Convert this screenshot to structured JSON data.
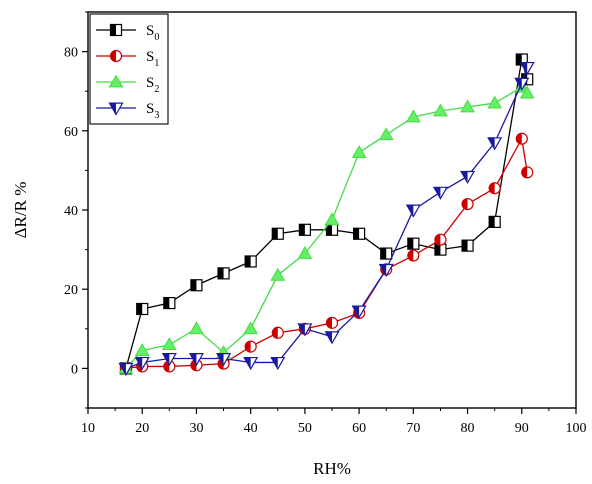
{
  "chart_data": {
    "type": "line",
    "xlabel": "RH%",
    "ylabel": "ΔR/R %",
    "xlim": [
      10,
      100
    ],
    "ylim": [
      -10,
      90
    ],
    "xticks": [
      "10",
      "20",
      "30",
      "40",
      "50",
      "60",
      "70",
      "80",
      "90",
      "100"
    ],
    "yticks": [
      "0",
      "20",
      "40",
      "60",
      "80"
    ],
    "grid": false,
    "legend_position": "top-left",
    "series": [
      {
        "name": "S0",
        "name_base": "S",
        "name_sub": "0",
        "color": "#000000",
        "fill": "#ffffff",
        "marker": "square-half",
        "x": [
          17,
          20,
          25,
          30,
          35,
          40,
          45,
          50,
          55,
          60,
          65,
          70,
          75,
          80,
          85,
          90,
          91
        ],
        "y": [
          0,
          15,
          16.5,
          21,
          24,
          27,
          34,
          35,
          35,
          34,
          29,
          31.5,
          30,
          31,
          37,
          78,
          73
        ]
      },
      {
        "name": "S1",
        "name_base": "S",
        "name_sub": "1",
        "color": "#cc0000",
        "fill": "#ffffff",
        "marker": "circle-half",
        "x": [
          17,
          20,
          25,
          30,
          35,
          40,
          45,
          50,
          55,
          60,
          65,
          70,
          75,
          80,
          85,
          90,
          91
        ],
        "y": [
          0,
          0.5,
          0.5,
          0.8,
          1.2,
          5.5,
          9,
          10,
          11.5,
          14,
          25,
          28.5,
          32.5,
          41.5,
          45.5,
          58,
          49.5
        ]
      },
      {
        "name": "S2",
        "name_base": "S",
        "name_sub": "2",
        "color": "#44dd44",
        "fill": "#66ee66",
        "marker": "triangle-up",
        "x": [
          17,
          20,
          25,
          30,
          35,
          40,
          45,
          50,
          55,
          60,
          65,
          70,
          75,
          80,
          85,
          90,
          91
        ],
        "y": [
          0,
          4.5,
          6,
          10,
          4,
          10,
          23.5,
          29,
          37.5,
          54.5,
          59,
          63.5,
          65,
          66,
          67,
          71,
          69.5
        ]
      },
      {
        "name": "S3",
        "name_base": "S",
        "name_sub": "3",
        "color": "#1a1aa0",
        "fill": "#ffffff",
        "marker": "triangle-down-half",
        "x": [
          17,
          20,
          25,
          30,
          35,
          40,
          45,
          50,
          55,
          60,
          65,
          70,
          75,
          80,
          85,
          90,
          91
        ],
        "y": [
          0,
          1.5,
          2.5,
          2.5,
          2.5,
          1.5,
          1.5,
          10,
          8,
          14.5,
          25,
          40,
          44.5,
          48.5,
          57,
          72,
          76
        ]
      }
    ]
  }
}
